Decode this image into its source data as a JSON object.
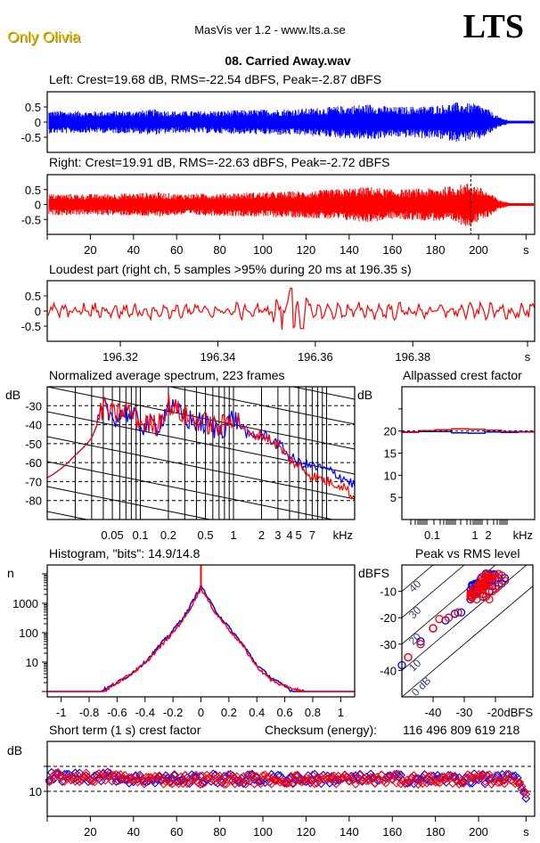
{
  "header": {
    "artist": "Only Olivia",
    "app_title": "MasVis ver 1.2 - www.lts.a.se",
    "logo": "LTS",
    "file_name": "08. Carried Away.wav",
    "brand_color": "#e8c400"
  },
  "colors": {
    "left": "#0000ff",
    "right": "#ff0000",
    "axis": "#000000"
  },
  "chart_data": [
    {
      "id": "left-waveform",
      "type": "area",
      "title": "Left: Crest=19.68 dB, RMS=-22.54 dBFS, Peak=-2.87 dBFS",
      "ylabel": "",
      "xlabel": "s",
      "ylim": [
        -1,
        1
      ],
      "yticks": [
        "0.5",
        "0",
        "-0.5"
      ],
      "ytick_values": [
        0.5,
        0,
        -0.5
      ],
      "xlim": [
        0,
        226
      ],
      "series": [
        {
          "name": "Left",
          "color": "#0000ff",
          "envelope_time": [
            0,
            20,
            40,
            50,
            60,
            80,
            100,
            120,
            140,
            150,
            160,
            180,
            190,
            200,
            205,
            210,
            215,
            226
          ],
          "envelope_peak": [
            0.38,
            0.36,
            0.38,
            0.42,
            0.36,
            0.38,
            0.42,
            0.45,
            0.55,
            0.6,
            0.5,
            0.55,
            0.65,
            0.6,
            0.4,
            0.15,
            0.04,
            0.02
          ]
        }
      ]
    },
    {
      "id": "right-waveform",
      "type": "area",
      "title": "Right: Crest=19.91 dB, RMS=-22.63 dBFS, Peak=-2.72 dBFS",
      "ylabel": "",
      "xlabel": "s",
      "ylim": [
        -1,
        1
      ],
      "yticks": [
        "0.5",
        "0",
        "-0.5"
      ],
      "ytick_values": [
        0.5,
        0,
        -0.5
      ],
      "xlim": [
        0,
        226
      ],
      "xticks": [
        "20",
        "40",
        "60",
        "80",
        "100",
        "120",
        "140",
        "160",
        "180",
        "200",
        "s"
      ],
      "xtick_values": [
        20,
        40,
        60,
        80,
        100,
        120,
        140,
        160,
        180,
        200,
        222
      ],
      "marker_time": 196.35,
      "series": [
        {
          "name": "Right",
          "color": "#ff0000",
          "envelope_time": [
            0,
            20,
            40,
            50,
            60,
            80,
            100,
            120,
            140,
            150,
            160,
            180,
            190,
            196,
            200,
            205,
            210,
            215,
            226
          ],
          "envelope_peak": [
            0.36,
            0.35,
            0.38,
            0.42,
            0.36,
            0.38,
            0.42,
            0.45,
            0.55,
            0.6,
            0.5,
            0.55,
            0.65,
            0.75,
            0.6,
            0.4,
            0.15,
            0.04,
            0.02
          ]
        }
      ]
    },
    {
      "id": "loudest-part",
      "type": "line",
      "title": "Loudest part (right ch, 5 samples >95% during 20 ms at 196.35 s)",
      "xlabel": "s",
      "xlim": [
        196.305,
        196.405
      ],
      "ylim": [
        -1,
        1
      ],
      "yticks": [
        "0.5",
        "0",
        "-0.5"
      ],
      "ytick_values": [
        0.5,
        0,
        -0.5
      ],
      "xticks": [
        "196.32",
        "196.34",
        "196.36",
        "196.38",
        "s"
      ],
      "xtick_values": [
        196.32,
        196.34,
        196.36,
        196.38,
        196.4
      ],
      "series": [
        {
          "name": "Right",
          "color": "#ff0000",
          "peak_at": 196.355,
          "peak_value": 0.75,
          "trough_value": -0.58
        }
      ]
    },
    {
      "id": "average-spectrum",
      "type": "line",
      "title": "Normalized average spectrum, 223 frames",
      "ylabel": "dB",
      "xlabel": "kHz",
      "ylim": [
        -90,
        -20
      ],
      "yticks": [
        "-30",
        "-40",
        "-50",
        "-60",
        "-70",
        "-80"
      ],
      "ytick_values": [
        -30,
        -40,
        -50,
        -60,
        -70,
        -80
      ],
      "xscale": "log",
      "xlim_khz": [
        0.01,
        20
      ],
      "xticks": [
        "0.05",
        "0.1",
        "0.2",
        "0.5",
        "1",
        "2",
        "3",
        "4",
        "5",
        "7",
        "kHz"
      ],
      "xtick_values": [
        0.05,
        0.1,
        0.2,
        0.5,
        1,
        2,
        3,
        4,
        5,
        7
      ],
      "series": [
        {
          "name": "Left",
          "color": "#0000ff",
          "freq_khz": [
            0.01,
            0.02,
            0.03,
            0.04,
            0.05,
            0.07,
            0.1,
            0.15,
            0.2,
            0.3,
            0.5,
            0.7,
            1,
            1.5,
            2,
            3,
            4,
            5,
            7,
            10,
            15,
            20
          ],
          "db": [
            -68,
            -56,
            -47,
            -31,
            -36,
            -33,
            -40,
            -41,
            -30,
            -37,
            -40,
            -43,
            -36,
            -47,
            -45,
            -50,
            -57,
            -60,
            -62,
            -64,
            -68,
            -72
          ]
        },
        {
          "name": "Right",
          "color": "#ff0000",
          "freq_khz": [
            0.01,
            0.02,
            0.03,
            0.04,
            0.05,
            0.07,
            0.1,
            0.15,
            0.2,
            0.3,
            0.5,
            0.7,
            1,
            1.5,
            2,
            3,
            4,
            5,
            7,
            10,
            15,
            20
          ],
          "db": [
            -68,
            -56,
            -47,
            -30,
            -35,
            -32,
            -39,
            -40,
            -29,
            -36,
            -39,
            -42,
            -35,
            -46,
            -45,
            -51,
            -58,
            -62,
            -67,
            -70,
            -72,
            -79
          ]
        }
      ]
    },
    {
      "id": "allpassed-crest",
      "type": "line",
      "title": "Allpassed crest factor",
      "ylabel": "dB",
      "xlabel": "kHz",
      "ylim": [
        0,
        30
      ],
      "yticks": [
        "20",
        "15",
        "10",
        "5"
      ],
      "ytick_values": [
        20,
        15,
        10,
        5
      ],
      "xscale": "log",
      "xticks": [
        "0.1",
        "1",
        "2",
        "kHz"
      ],
      "xtick_values": [
        0.1,
        1,
        2
      ],
      "series": [
        {
          "name": "Left",
          "color": "#0000ff",
          "values": [
            19.8,
            19.9,
            19.9,
            19.6,
            19.5,
            19.8,
            19.7,
            19.8
          ]
        },
        {
          "name": "Right",
          "color": "#ff0000",
          "values": [
            19.7,
            20.1,
            20.3,
            20.5,
            20.4,
            20.2,
            19.9,
            19.9
          ]
        }
      ]
    },
    {
      "id": "histogram",
      "type": "line",
      "title": "Histogram, \"bits\": 14.9/14.8",
      "ylabel": "n",
      "yscale": "log",
      "yticks": [
        "1000",
        "100",
        "10"
      ],
      "ytick_values": [
        1000,
        100,
        10
      ],
      "xlim": [
        -1.1,
        1.1
      ],
      "xticks": [
        "-1",
        "-0.8",
        "-0.6",
        "-0.4",
        "-0.2",
        "0",
        "0.2",
        "0.4",
        "0.6",
        "0.8",
        "1"
      ],
      "xtick_values": [
        -1,
        -0.8,
        -0.6,
        -0.4,
        -0.2,
        0,
        0.2,
        0.4,
        0.6,
        0.8,
        1
      ],
      "series": [
        {
          "name": "Left",
          "color": "#0000ff",
          "x": [
            -0.72,
            -0.6,
            -0.5,
            -0.4,
            -0.3,
            -0.2,
            -0.1,
            0,
            0.1,
            0.2,
            0.3,
            0.4,
            0.5,
            0.6,
            0.66
          ],
          "n": [
            1,
            2,
            4,
            10,
            35,
            120,
            500,
            4000,
            600,
            150,
            40,
            8,
            3,
            1.5,
            1
          ]
        },
        {
          "name": "Right",
          "color": "#ff0000",
          "x": [
            -0.7,
            -0.6,
            -0.5,
            -0.4,
            -0.3,
            -0.2,
            -0.1,
            0,
            0.1,
            0.2,
            0.3,
            0.4,
            0.5,
            0.6,
            0.74
          ],
          "n": [
            1,
            2,
            4,
            9,
            30,
            100,
            420,
            3200,
            500,
            130,
            35,
            7,
            2.5,
            1.5,
            1
          ]
        }
      ]
    },
    {
      "id": "peak-vs-rms",
      "type": "scatter",
      "title": "Peak vs RMS level",
      "ylabel": "dBFS",
      "xlabel": "dBFS",
      "xlim": [
        -50,
        -8
      ],
      "ylim": [
        -50,
        0
      ],
      "yticks": [
        "-10",
        "-20",
        "-30",
        "-40"
      ],
      "ytick_values": [
        -10,
        -20,
        -30,
        -40
      ],
      "xticks": [
        "-40",
        "-30",
        "-20",
        "dBFS"
      ],
      "xtick_values": [
        -40,
        -30,
        -20
      ],
      "diagonal_labels": [
        "40",
        "30",
        "20",
        "10",
        "0 dB"
      ],
      "diagonal_values": [
        40,
        30,
        20,
        10,
        0
      ],
      "series": [
        {
          "name": "Left",
          "color": "#0000ff",
          "rms": [
            -50,
            -48,
            -44,
            -40,
            -36,
            -33,
            -31,
            -28,
            -26,
            -25,
            -24,
            -23,
            -22,
            -21,
            -20,
            -19,
            -18,
            -17,
            -27,
            -24,
            -21
          ],
          "peak": [
            -38,
            -35,
            -29,
            -24,
            -21,
            -18.5,
            -18,
            -13,
            -10,
            -8,
            -12,
            -7,
            -10,
            -6,
            -9,
            -5,
            -7,
            -5,
            -9,
            -11,
            -8
          ]
        },
        {
          "name": "Right",
          "color": "#ff0000",
          "rms": [
            -48,
            -44,
            -40,
            -38,
            -35,
            -32,
            -28,
            -27,
            -26,
            -25,
            -24,
            -23,
            -22,
            -21,
            -20,
            -19,
            -18,
            -17,
            -26,
            -23,
            -20,
            -24,
            -22
          ],
          "peak": [
            -35,
            -30,
            -24,
            -20.5,
            -20,
            -18,
            -12,
            -9,
            -13,
            -7,
            -11,
            -8,
            -6,
            -10,
            -5,
            -8,
            -4,
            -6,
            -11,
            -12,
            -9,
            -9,
            -13
          ]
        }
      ]
    },
    {
      "id": "short-term-crest",
      "type": "scatter",
      "title": "Short term (1 s) crest factor",
      "checksum_label": "Checksum (energy):",
      "checksum_value": "116 496 809 619 218",
      "ylabel": "dB",
      "xlabel": "s",
      "ylim": [
        5,
        20
      ],
      "yticks": [
        "10"
      ],
      "ytick_values": [
        10
      ],
      "dashed_levels": [
        10,
        15
      ],
      "xlim": [
        0,
        226
      ],
      "xticks": [
        "20",
        "40",
        "60",
        "80",
        "100",
        "120",
        "140",
        "160",
        "180",
        "200",
        "s"
      ],
      "xtick_values": [
        20,
        40,
        60,
        80,
        100,
        120,
        140,
        160,
        180,
        200,
        222
      ],
      "series": [
        {
          "name": "Left",
          "color": "#0000ff",
          "mean": 12.5,
          "spread": 1.0,
          "tail": [
            11.5,
            10.5,
            9.7,
            8.6
          ]
        },
        {
          "name": "Right",
          "color": "#ff0000",
          "mean": 12.4,
          "spread": 1.0,
          "tail": [
            11.8,
            11.0,
            10.1,
            9.4
          ]
        }
      ]
    }
  ]
}
